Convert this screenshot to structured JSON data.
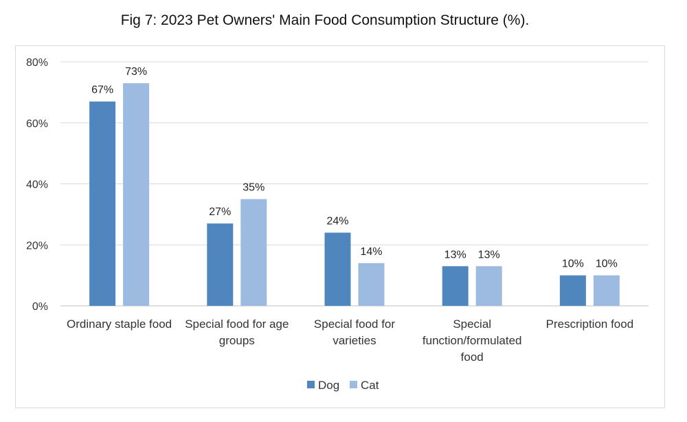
{
  "chart_data": {
    "type": "bar",
    "title": "Fig 7: 2023 Pet Owners' Main Food Consumption Structure (%).",
    "categories": [
      [
        "Ordinary staple food"
      ],
      [
        "Special food for age",
        "groups"
      ],
      [
        "Special food for",
        "varieties"
      ],
      [
        "Special",
        "function/formulated",
        "food"
      ],
      [
        "Prescription food"
      ]
    ],
    "series": [
      {
        "name": "Dog",
        "values": [
          67,
          27,
          24,
          13,
          10
        ],
        "labels": [
          "67%",
          "27%",
          "24%",
          "13%",
          "10%"
        ],
        "color": "#4f86bd"
      },
      {
        "name": "Cat",
        "values": [
          73,
          35,
          14,
          13,
          10
        ],
        "labels": [
          "73%",
          "35%",
          "14%",
          "13%",
          "10%"
        ],
        "color": "#9dbbe1"
      }
    ],
    "yticks": [
      "0%",
      "20%",
      "40%",
      "60%",
      "80%"
    ],
    "ylim": [
      0,
      80
    ],
    "grid": true,
    "legend": "bottom-center"
  }
}
